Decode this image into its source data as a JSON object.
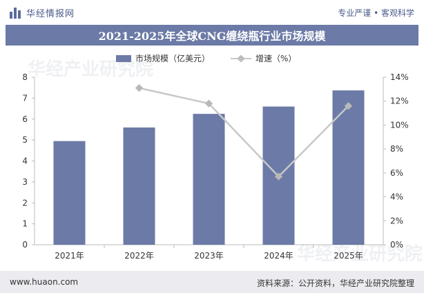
{
  "header": {
    "brand": "华经情报网",
    "slogan": "专业严谨 • 客观科学"
  },
  "title": "2021-2025年全球CNG缠绕瓶行业市场规模",
  "legend": {
    "bar_label": "市场规模（亿美元）",
    "line_label": "增速（%）"
  },
  "watermark": "华经产业研究院",
  "footer": {
    "site": "www.huaon.com",
    "source": "资料来源：公开资料，华经产业研究院整理"
  },
  "colors": {
    "bar": "#6b7aa6",
    "line": "#c8c8c8",
    "header_band": "#6b7aa6"
  },
  "chart_data": {
    "type": "bar",
    "categories": [
      "2021年",
      "2022年",
      "2023年",
      "2024年",
      "2025年"
    ],
    "series": [
      {
        "name": "市场规模（亿美元）",
        "type": "bar",
        "axis": "left",
        "values": [
          4.95,
          5.6,
          6.25,
          6.6,
          7.37
        ]
      },
      {
        "name": "增速（%）",
        "type": "line",
        "axis": "right",
        "values": [
          null,
          13.1,
          11.8,
          5.7,
          11.6
        ]
      }
    ],
    "y_left": {
      "ylim": [
        0,
        8
      ],
      "ticks": [
        "0",
        "1",
        "2",
        "3",
        "4",
        "5",
        "6",
        "7",
        "8"
      ]
    },
    "y_right": {
      "ylim": [
        0,
        14
      ],
      "ticks": [
        "0%",
        "2%",
        "4%",
        "6%",
        "8%",
        "10%",
        "12%",
        "14%"
      ]
    },
    "grid": false,
    "legend_position": "top"
  }
}
